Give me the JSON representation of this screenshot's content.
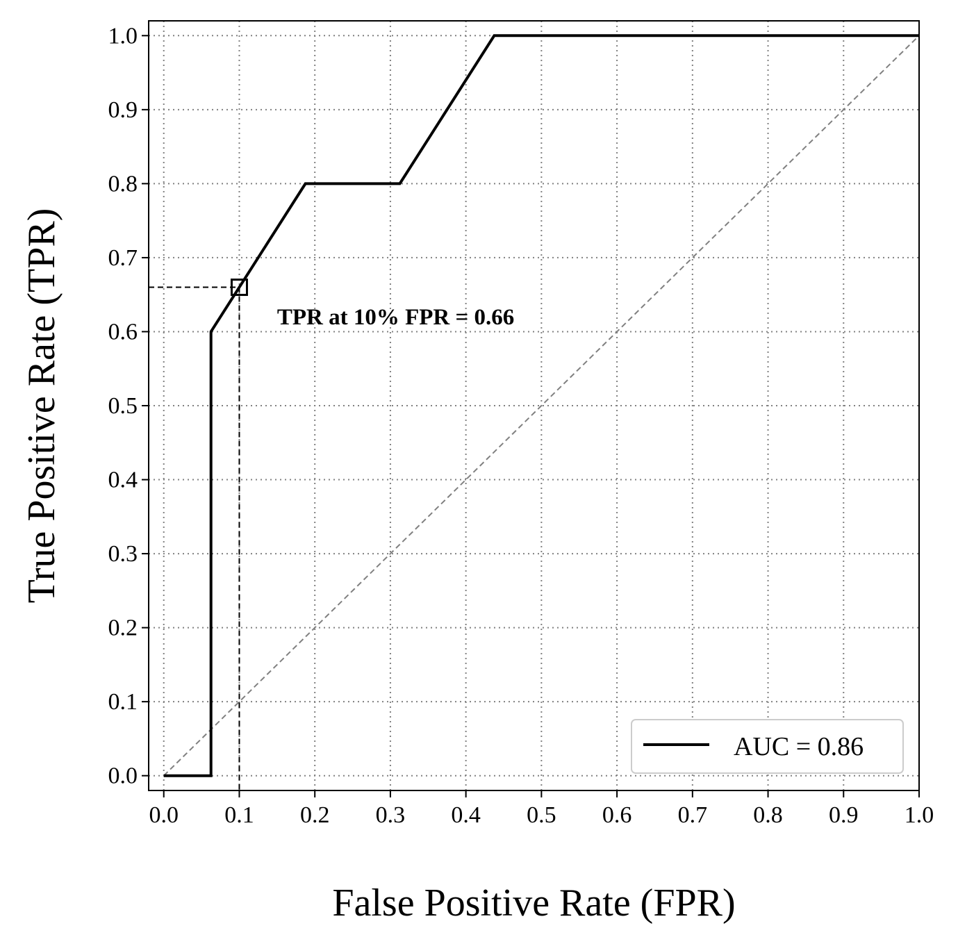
{
  "chart_data": {
    "type": "line",
    "title": "",
    "xlabel": "False Positive Rate (FPR)",
    "ylabel": "True Positive Rate (TPR)",
    "xlim": [
      -0.02,
      1.0
    ],
    "ylim": [
      -0.02,
      1.02
    ],
    "x_ticks": [
      "0.0",
      "0.1",
      "0.2",
      "0.3",
      "0.4",
      "0.5",
      "0.6",
      "0.7",
      "0.8",
      "0.9",
      "1.0"
    ],
    "y_ticks": [
      "0.0",
      "0.1",
      "0.2",
      "0.3",
      "0.4",
      "0.5",
      "0.6",
      "0.7",
      "0.8",
      "0.9",
      "1.0"
    ],
    "grid": true,
    "series": [
      {
        "name": "AUC = 0.86",
        "color": "#000000",
        "x": [
          0.0,
          0.0625,
          0.0625,
          0.1875,
          0.3125,
          0.4375,
          1.0
        ],
        "y": [
          0.0,
          0.0,
          0.6,
          0.8,
          0.8,
          1.0,
          1.0
        ]
      }
    ],
    "reference_line": {
      "x": [
        0.0,
        1.0
      ],
      "y": [
        0.0,
        1.0
      ],
      "color": "#808080",
      "style": "dashed"
    },
    "marker": {
      "x": 0.1,
      "y": 0.66,
      "shape": "square"
    },
    "annotation": {
      "text": "TPR at 10% FPR = 0.66",
      "x": 0.15,
      "y": 0.61
    },
    "legend": {
      "entries": [
        "AUC = 0.86"
      ],
      "placement": "lower-right"
    }
  }
}
